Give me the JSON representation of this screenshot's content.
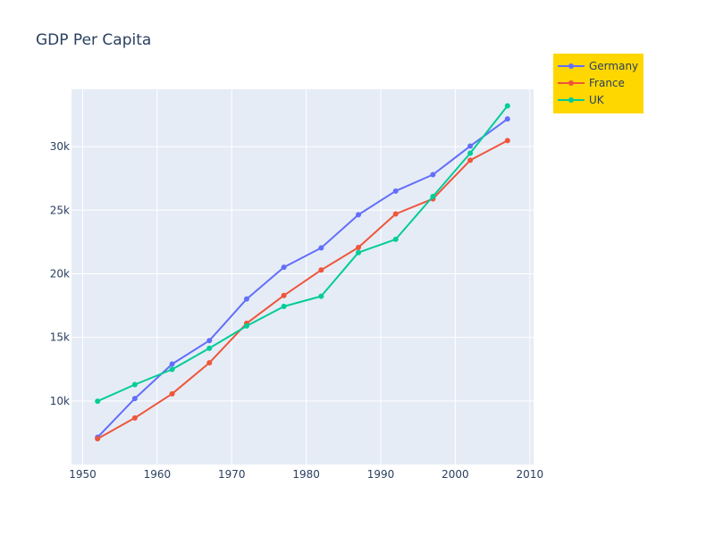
{
  "chart_data": {
    "type": "line",
    "title": "GDP Per Capita",
    "xlabel": "",
    "ylabel": "",
    "xlim": [
      1948.5,
      2010.5
    ],
    "ylim": [
      5000,
      34500
    ],
    "x_ticks": [
      1950,
      1960,
      1970,
      1980,
      1990,
      2000,
      2010
    ],
    "y_ticks": [
      10000,
      15000,
      20000,
      25000,
      30000
    ],
    "y_tick_labels": [
      "10k",
      "15k",
      "20k",
      "25k",
      "30k"
    ],
    "grid": true,
    "legend": {
      "placement": "top-right",
      "background": "#FFD700"
    },
    "plot_background": "#e5ecf6",
    "x": [
      1952,
      1957,
      1962,
      1967,
      1972,
      1977,
      1982,
      1987,
      1992,
      1997,
      2002,
      2007
    ],
    "series": [
      {
        "name": "Germany",
        "color": "#636efa",
        "values": [
          7144,
          10188,
          12902,
          14746,
          18016,
          20513,
          22032,
          24639,
          26505,
          27789,
          30036,
          32170
        ]
      },
      {
        "name": "France",
        "color": "#EF553B",
        "values": [
          7030,
          8663,
          10560,
          12999,
          16107,
          18293,
          20294,
          22066,
          24704,
          25890,
          28926,
          30470
        ]
      },
      {
        "name": "UK",
        "color": "#00cc96",
        "values": [
          9980,
          11283,
          12477,
          14143,
          15895,
          17429,
          18232,
          21665,
          22705,
          26075,
          29479,
          33203
        ]
      }
    ]
  }
}
